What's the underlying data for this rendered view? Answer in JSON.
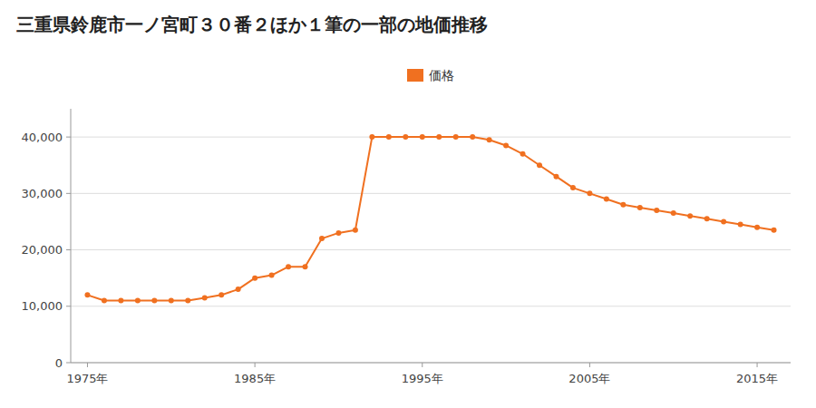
{
  "chart_data": {
    "type": "line",
    "title": "三重県鈴鹿市一ノ宮町３０番２ほか１筆の一部の地価推移",
    "x": [
      1975,
      1976,
      1977,
      1978,
      1979,
      1980,
      1981,
      1982,
      1983,
      1984,
      1985,
      1986,
      1987,
      1988,
      1989,
      1990,
      1991,
      1992,
      1993,
      1994,
      1995,
      1996,
      1997,
      1998,
      1999,
      2000,
      2001,
      2002,
      2003,
      2004,
      2005,
      2006,
      2007,
      2008,
      2009,
      2010,
      2011,
      2012,
      2013,
      2014,
      2015,
      2016
    ],
    "series": [
      {
        "name": "価格",
        "color": "#f07020",
        "marker": "circle",
        "line_style": "solid",
        "values": [
          12000,
          11000,
          11000,
          11000,
          11000,
          11000,
          11000,
          11500,
          12000,
          13000,
          15000,
          15500,
          17000,
          17000,
          22000,
          23000,
          23500,
          40000,
          40000,
          40000,
          40000,
          40000,
          40000,
          40000,
          39500,
          38500,
          37000,
          35000,
          33000,
          31000,
          30000,
          29000,
          28000,
          27500,
          27000,
          26500,
          26000,
          25500,
          25000,
          24500,
          24000,
          23500
        ]
      }
    ],
    "xlim": [
      1974,
      2017
    ],
    "xticks": [
      {
        "value": 1975,
        "label": "1975年"
      },
      {
        "value": 1985,
        "label": "1985年"
      },
      {
        "value": 1995,
        "label": "1995年"
      },
      {
        "value": 2005,
        "label": "2005年"
      },
      {
        "value": 2015,
        "label": "2015年"
      }
    ],
    "ylim": [
      0,
      45000
    ],
    "yticks": [
      0,
      {
        "value": 10000,
        "label": "10,000"
      },
      {
        "value": 20000,
        "label": "20,000"
      },
      {
        "value": 30000,
        "label": "30,000"
      },
      {
        "value": 40000,
        "label": "40,000"
      }
    ],
    "grid": true,
    "legend": "top"
  }
}
